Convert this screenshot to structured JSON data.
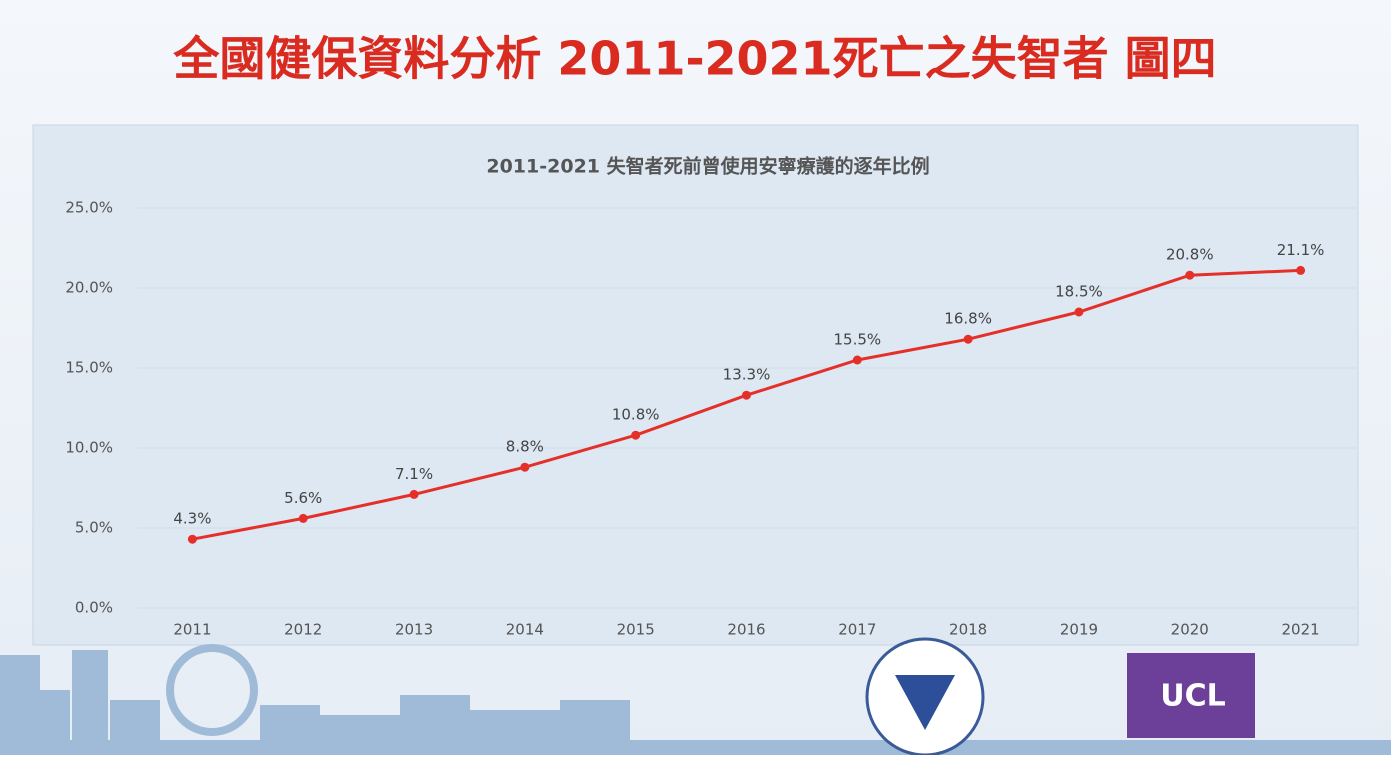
{
  "slide_title": "全國健保資料分析 2011-2021死亡之失智者 圖四",
  "logo_text": "UCL",
  "chart_data": {
    "type": "line",
    "title": "2011-2021 失智者死前曾使用安寧療護的逐年比例",
    "categories": [
      "2011",
      "2012",
      "2013",
      "2014",
      "2015",
      "2016",
      "2017",
      "2018",
      "2019",
      "2020",
      "2021"
    ],
    "values": [
      4.3,
      5.6,
      7.1,
      8.8,
      10.8,
      13.3,
      15.5,
      16.8,
      18.5,
      20.8,
      21.1
    ],
    "value_labels": [
      "4.3%",
      "5.6%",
      "7.1%",
      "8.8%",
      "10.8%",
      "13.3%",
      "15.5%",
      "16.8%",
      "18.5%",
      "20.8%",
      "21.1%"
    ],
    "color": "#e5302a",
    "ylim": [
      0,
      25
    ],
    "yticks": [
      {
        "value": 0,
        "label": "0.0%"
      },
      {
        "value": 5,
        "label": "5.0%"
      },
      {
        "value": 10,
        "label": "10.0%"
      },
      {
        "value": 15,
        "label": "15.0%"
      },
      {
        "value": 20,
        "label": "20.0%"
      },
      {
        "value": 25,
        "label": "25.0%"
      }
    ],
    "grid": true
  }
}
